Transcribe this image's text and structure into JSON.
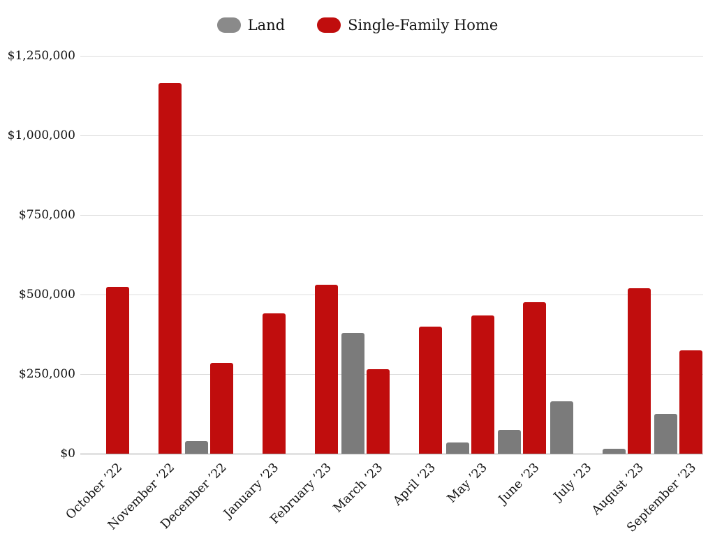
{
  "chart_data": {
    "type": "bar",
    "title": "",
    "categories": [
      "October ’22",
      "November ’22",
      "December ’22",
      "January ’23",
      "February ’23",
      "March ’23",
      "April ’23",
      "May ’23",
      "June ’23",
      "July ’23",
      "August ’23",
      "September ’23"
    ],
    "series": [
      {
        "name": "Land",
        "color": "#7b7b7b",
        "values": [
          0,
          0,
          40000,
          0,
          0,
          380000,
          0,
          35000,
          75000,
          165000,
          15000,
          125000
        ]
      },
      {
        "name": "Single-Family Home",
        "color": "#c00d0d",
        "values": [
          525000,
          1165000,
          285000,
          440000,
          530000,
          265000,
          400000,
          435000,
          475000,
          0,
          520000,
          325000
        ]
      }
    ],
    "ylim": [
      0,
      1250000
    ],
    "y_ticks": [
      {
        "value": 0,
        "label": "$0"
      },
      {
        "value": 250000,
        "label": "$250,000"
      },
      {
        "value": 500000,
        "label": "$500,000"
      },
      {
        "value": 750000,
        "label": "$750,000"
      },
      {
        "value": 1000000,
        "label": "$1,000,000"
      },
      {
        "value": 1250000,
        "label": "$1,250,000"
      }
    ],
    "grid": "horizontal",
    "legend_position": "top-center"
  },
  "colors": {
    "land": "#7b7b7b",
    "single_family_home": "#c00d0d",
    "legend_land_swatch": "#8a8a8a",
    "gridline": "#dcdcdc",
    "axis_line": "#9a9a9a",
    "text": "#131313",
    "background": "#ffffff"
  }
}
